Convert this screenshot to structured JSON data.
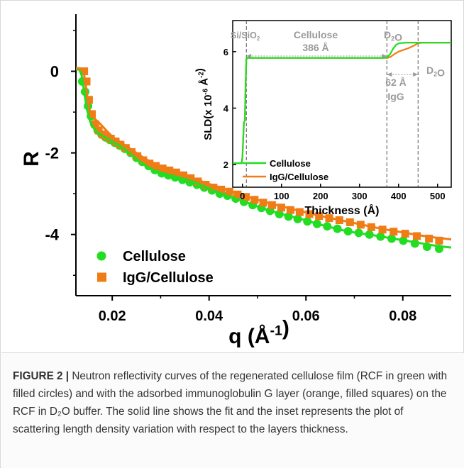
{
  "figure": {
    "caption_label": "FIGURE 2",
    "caption_separator": " | ",
    "caption_text": "Neutron reflectivity curves of the regenerated cellulose film (RCF in green with filled circles) and with the adsorbed immunoglobulin G layer (orange, filled squares) on the RCF in D₂O buffer. The solid line shows the fit and the inset represents the plot of scattering length density variation with respect to the layers thickness."
  },
  "colors": {
    "green": "#22dd22",
    "orange": "#f07c16",
    "annotation": "#9a9a9a"
  },
  "chart_data": [
    {
      "type": "scatter",
      "title": "",
      "xlabel": "q (Å⁻¹)",
      "ylabel": "R",
      "xlim": [
        0.0125,
        0.09
      ],
      "ylim": [
        -5.5,
        1.4
      ],
      "x_ticks": [
        0.02,
        0.04,
        0.06,
        0.08
      ],
      "x_tick_labels": [
        "0.02",
        "0.04",
        "0.06",
        "0.08"
      ],
      "y_ticks": [
        0,
        -2,
        -4
      ],
      "y_tick_labels": [
        "0",
        "-2",
        "-4"
      ],
      "legend_position": "bottom-left",
      "series": [
        {
          "name": "Cellulose",
          "color": "#22dd22",
          "marker": "circle",
          "points": [
            [
              0.0138,
              -0.25
            ],
            [
              0.0144,
              -0.5
            ],
            [
              0.015,
              -0.85
            ],
            [
              0.0156,
              -1.1
            ],
            [
              0.0163,
              -1.3
            ],
            [
              0.017,
              -1.45
            ],
            [
              0.0178,
              -1.55
            ],
            [
              0.0186,
              -1.62
            ],
            [
              0.0195,
              -1.68
            ],
            [
              0.0205,
              -1.75
            ],
            [
              0.0215,
              -1.82
            ],
            [
              0.0226,
              -1.9
            ],
            [
              0.0238,
              -2.0
            ],
            [
              0.025,
              -2.12
            ],
            [
              0.0262,
              -2.22
            ],
            [
              0.0275,
              -2.32
            ],
            [
              0.0288,
              -2.42
            ],
            [
              0.0302,
              -2.5
            ],
            [
              0.0316,
              -2.55
            ],
            [
              0.033,
              -2.6
            ],
            [
              0.0345,
              -2.66
            ],
            [
              0.036,
              -2.72
            ],
            [
              0.0375,
              -2.78
            ],
            [
              0.039,
              -2.85
            ],
            [
              0.0406,
              -2.92
            ],
            [
              0.0422,
              -3.0
            ],
            [
              0.0438,
              -3.05
            ],
            [
              0.0455,
              -3.12
            ],
            [
              0.0472,
              -3.2
            ],
            [
              0.049,
              -3.28
            ],
            [
              0.0508,
              -3.35
            ],
            [
              0.0526,
              -3.42
            ],
            [
              0.0545,
              -3.5
            ],
            [
              0.0564,
              -3.56
            ],
            [
              0.0583,
              -3.62
            ],
            [
              0.0603,
              -3.68
            ],
            [
              0.0623,
              -3.74
            ],
            [
              0.0644,
              -3.8
            ],
            [
              0.0665,
              -3.86
            ],
            [
              0.0687,
              -3.92
            ],
            [
              0.0709,
              -3.96
            ],
            [
              0.0731,
              -4.0
            ],
            [
              0.0754,
              -4.05
            ],
            [
              0.0777,
              -4.1
            ],
            [
              0.0801,
              -4.15
            ],
            [
              0.0825,
              -4.22
            ],
            [
              0.085,
              -4.3
            ],
            [
              0.0875,
              -4.35
            ]
          ],
          "fit": [
            [
              0.0125,
              0.05
            ],
            [
              0.0132,
              0.04
            ],
            [
              0.0137,
              -0.1
            ],
            [
              0.0142,
              -0.5
            ],
            [
              0.0148,
              -0.95
            ],
            [
              0.0155,
              -1.25
            ],
            [
              0.0162,
              -1.4
            ],
            [
              0.017,
              -1.5
            ],
            [
              0.018,
              -1.58
            ],
            [
              0.019,
              -1.65
            ],
            [
              0.02,
              -1.72
            ],
            [
              0.0215,
              -1.82
            ],
            [
              0.023,
              -1.95
            ],
            [
              0.0245,
              -2.1
            ],
            [
              0.026,
              -2.24
            ],
            [
              0.0275,
              -2.36
            ],
            [
              0.029,
              -2.45
            ],
            [
              0.031,
              -2.52
            ],
            [
              0.033,
              -2.58
            ],
            [
              0.035,
              -2.64
            ],
            [
              0.037,
              -2.72
            ],
            [
              0.039,
              -2.82
            ],
            [
              0.041,
              -2.93
            ],
            [
              0.043,
              -3.02
            ],
            [
              0.045,
              -3.1
            ],
            [
              0.047,
              -3.18
            ],
            [
              0.049,
              -3.27
            ],
            [
              0.051,
              -3.36
            ],
            [
              0.053,
              -3.43
            ],
            [
              0.055,
              -3.5
            ],
            [
              0.057,
              -3.56
            ],
            [
              0.059,
              -3.62
            ],
            [
              0.061,
              -3.69
            ],
            [
              0.063,
              -3.76
            ],
            [
              0.065,
              -3.82
            ],
            [
              0.067,
              -3.88
            ],
            [
              0.069,
              -3.93
            ],
            [
              0.071,
              -3.97
            ],
            [
              0.073,
              -4.0
            ],
            [
              0.075,
              -4.04
            ],
            [
              0.077,
              -4.08
            ],
            [
              0.079,
              -4.12
            ],
            [
              0.081,
              -4.16
            ],
            [
              0.083,
              -4.2
            ],
            [
              0.085,
              -4.24
            ],
            [
              0.087,
              -4.28
            ],
            [
              0.09,
              -4.32
            ]
          ]
        },
        {
          "name": "IgG/Cellulose",
          "color": "#f07c16",
          "marker": "square",
          "points": [
            [
              0.0142,
              0.0
            ],
            [
              0.0147,
              -0.25
            ],
            [
              0.0152,
              -0.7
            ],
            [
              0.0158,
              -1.05
            ],
            [
              0.0165,
              -1.3
            ],
            [
              0.0172,
              -1.45
            ],
            [
              0.018,
              -1.55
            ],
            [
              0.0188,
              -1.6
            ],
            [
              0.0197,
              -1.65
            ],
            [
              0.0207,
              -1.72
            ],
            [
              0.0217,
              -1.8
            ],
            [
              0.0228,
              -1.88
            ],
            [
              0.024,
              -1.98
            ],
            [
              0.0252,
              -2.08
            ],
            [
              0.0264,
              -2.18
            ],
            [
              0.0277,
              -2.26
            ],
            [
              0.029,
              -2.32
            ],
            [
              0.0304,
              -2.38
            ],
            [
              0.0318,
              -2.43
            ],
            [
              0.0332,
              -2.48
            ],
            [
              0.0347,
              -2.55
            ],
            [
              0.0362,
              -2.62
            ],
            [
              0.0377,
              -2.7
            ],
            [
              0.0393,
              -2.78
            ],
            [
              0.0409,
              -2.85
            ],
            [
              0.0425,
              -2.9
            ],
            [
              0.0442,
              -2.95
            ],
            [
              0.0459,
              -3.02
            ],
            [
              0.0476,
              -3.08
            ],
            [
              0.0494,
              -3.15
            ],
            [
              0.0512,
              -3.22
            ],
            [
              0.053,
              -3.28
            ],
            [
              0.0549,
              -3.34
            ],
            [
              0.0568,
              -3.4
            ],
            [
              0.0587,
              -3.45
            ],
            [
              0.0607,
              -3.5
            ],
            [
              0.0627,
              -3.55
            ],
            [
              0.0648,
              -3.6
            ],
            [
              0.0669,
              -3.65
            ],
            [
              0.0691,
              -3.7
            ],
            [
              0.0713,
              -3.76
            ],
            [
              0.0735,
              -3.82
            ],
            [
              0.0758,
              -3.88
            ],
            [
              0.0781,
              -3.93
            ],
            [
              0.0805,
              -3.98
            ],
            [
              0.0829,
              -4.04
            ],
            [
              0.0854,
              -4.1
            ],
            [
              0.0875,
              -4.15
            ]
          ],
          "fit": [
            [
              0.0125,
              0.08
            ],
            [
              0.0135,
              0.07
            ],
            [
              0.0141,
              0.0
            ],
            [
              0.0146,
              -0.4
            ],
            [
              0.0152,
              -0.9
            ],
            [
              0.0158,
              -1.1
            ],
            [
              0.0165,
              -1.18
            ],
            [
              0.0172,
              -1.25
            ],
            [
              0.018,
              -1.35
            ],
            [
              0.019,
              -1.48
            ],
            [
              0.02,
              -1.6
            ],
            [
              0.021,
              -1.68
            ],
            [
              0.022,
              -1.76
            ],
            [
              0.0235,
              -1.88
            ],
            [
              0.025,
              -2.0
            ],
            [
              0.0265,
              -2.12
            ],
            [
              0.028,
              -2.22
            ],
            [
              0.03,
              -2.32
            ],
            [
              0.032,
              -2.42
            ],
            [
              0.034,
              -2.52
            ],
            [
              0.036,
              -2.6
            ],
            [
              0.038,
              -2.68
            ],
            [
              0.04,
              -2.76
            ],
            [
              0.042,
              -2.84
            ],
            [
              0.044,
              -2.92
            ],
            [
              0.046,
              -3.0
            ],
            [
              0.048,
              -3.08
            ],
            [
              0.05,
              -3.15
            ],
            [
              0.052,
              -3.22
            ],
            [
              0.054,
              -3.28
            ],
            [
              0.056,
              -3.34
            ],
            [
              0.058,
              -3.4
            ],
            [
              0.06,
              -3.46
            ],
            [
              0.062,
              -3.52
            ],
            [
              0.064,
              -3.57
            ],
            [
              0.066,
              -3.62
            ],
            [
              0.068,
              -3.67
            ],
            [
              0.07,
              -3.72
            ],
            [
              0.072,
              -3.77
            ],
            [
              0.074,
              -3.82
            ],
            [
              0.076,
              -3.87
            ],
            [
              0.078,
              -3.91
            ],
            [
              0.08,
              -3.95
            ],
            [
              0.082,
              -3.99
            ],
            [
              0.084,
              -4.03
            ],
            [
              0.087,
              -4.08
            ],
            [
              0.09,
              -4.12
            ]
          ]
        }
      ]
    },
    {
      "type": "line",
      "title": "",
      "xlabel": "Thickness (Å)",
      "ylabel": "SLD(x 10⁻⁶ Å⁻²)",
      "xlim": [
        -25,
        535
      ],
      "ylim": [
        1.2,
        7.1
      ],
      "x_ticks": [
        0,
        100,
        200,
        300,
        400,
        500
      ],
      "x_tick_labels": [
        "0",
        "100",
        "200",
        "300",
        "400",
        "500"
      ],
      "y_ticks": [
        2,
        4,
        6
      ],
      "y_tick_labels": [
        "2",
        "4",
        "6"
      ],
      "legend_position": "bottom-left",
      "series": [
        {
          "name": "Cellulose",
          "color": "#22dd22",
          "points": [
            [
              -25,
              2.05
            ],
            [
              -2,
              2.05
            ],
            [
              0,
              2.3
            ],
            [
              2,
              3.0
            ],
            [
              4,
              3.5
            ],
            [
              6,
              3.55
            ],
            [
              8,
              4.8
            ],
            [
              10,
              5.75
            ],
            [
              14,
              5.78
            ],
            [
              360,
              5.78
            ],
            [
              370,
              5.8
            ],
            [
              378,
              5.9
            ],
            [
              386,
              6.1
            ],
            [
              394,
              6.25
            ],
            [
              402,
              6.3
            ],
            [
              420,
              6.32
            ],
            [
              535,
              6.32
            ]
          ]
        },
        {
          "name": "IgG/Cellulose",
          "color": "#f07c16",
          "points": [
            [
              -25,
              2.05
            ],
            [
              -2,
              2.05
            ],
            [
              0,
              2.3
            ],
            [
              2,
              3.0
            ],
            [
              4,
              3.5
            ],
            [
              6,
              3.55
            ],
            [
              8,
              4.8
            ],
            [
              10,
              5.75
            ],
            [
              14,
              5.78
            ],
            [
              365,
              5.78
            ],
            [
              372,
              5.78
            ],
            [
              380,
              5.82
            ],
            [
              390,
              5.92
            ],
            [
              400,
              6.0
            ],
            [
              410,
              6.05
            ],
            [
              425,
              6.12
            ],
            [
              440,
              6.22
            ],
            [
              450,
              6.3
            ],
            [
              462,
              6.32
            ],
            [
              535,
              6.32
            ]
          ]
        }
      ],
      "annotations": {
        "region_1": "Si/SiO₂",
        "region_2_name": "Cellulose",
        "region_2_width": "386 Å",
        "region_3": "D₂O",
        "region_4_width": "62 Å",
        "region_4_name": "IgG",
        "region_5": "D₂O"
      },
      "boundaries": [
        10,
        370,
        450
      ]
    }
  ]
}
